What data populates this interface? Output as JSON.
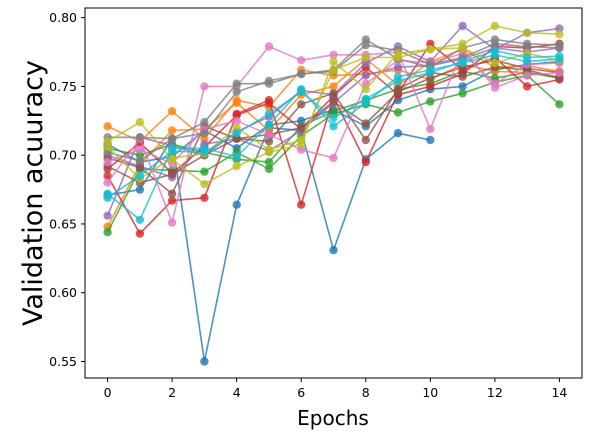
{
  "chart_data": {
    "type": "line",
    "xlabel": "Epochs",
    "ylabel": "Validation acuuracy",
    "xlim": [
      -0.7,
      14.7
    ],
    "ylim": [
      0.538,
      0.807
    ],
    "xticks": [
      0,
      2,
      4,
      6,
      8,
      10,
      12,
      14
    ],
    "yticks": [
      0.55,
      0.6,
      0.65,
      0.7,
      0.75,
      0.8
    ],
    "ytick_labels": [
      "0.55",
      "0.60",
      "0.65",
      "0.70",
      "0.75",
      "0.80"
    ],
    "grid": false,
    "x": [
      0,
      1,
      2,
      3,
      4,
      5,
      6,
      7,
      8,
      9,
      10,
      11,
      12,
      13,
      14
    ],
    "series": [
      {
        "color": "#1f77b4",
        "values": [
          0.671,
          0.675,
          0.712,
          0.55,
          0.664,
          0.72,
          0.718,
          0.631,
          0.697,
          0.716,
          0.711,
          null,
          null,
          null,
          null
        ]
      },
      {
        "color": "#1f77b4",
        "values": [
          0.708,
          0.695,
          0.699,
          0.718,
          0.705,
          0.722,
          0.725,
          0.733,
          0.721,
          0.74,
          0.748,
          0.75,
          0.762,
          0.766,
          0.768
        ]
      },
      {
        "color": "#ff7f0e",
        "values": [
          0.721,
          0.71,
          0.732,
          0.712,
          0.74,
          0.735,
          0.762,
          0.758,
          0.759,
          0.762,
          0.755,
          0.766,
          0.761,
          0.76,
          0.757
        ]
      },
      {
        "color": "#ff7f0e",
        "values": [
          0.648,
          0.693,
          0.718,
          0.719,
          0.738,
          0.718,
          0.744,
          0.75,
          0.77,
          0.751,
          0.768,
          0.777,
          0.764,
          0.765,
          0.761
        ]
      },
      {
        "color": "#2ca02c",
        "values": [
          0.644,
          0.69,
          0.689,
          0.688,
          0.702,
          0.69,
          0.714,
          0.73,
          0.737,
          0.731,
          0.739,
          0.745,
          0.753,
          0.758,
          0.737
        ]
      },
      {
        "color": "#2ca02c",
        "values": [
          0.705,
          0.7,
          0.708,
          0.702,
          0.697,
          0.695,
          0.721,
          0.732,
          0.74,
          0.748,
          0.752,
          0.761,
          0.756,
          0.76,
          0.756
        ]
      },
      {
        "color": "#d62728",
        "values": [
          0.685,
          0.643,
          0.667,
          0.669,
          0.73,
          0.74,
          0.664,
          0.742,
          0.695,
          0.745,
          0.781,
          0.762,
          0.771,
          0.75,
          0.755
        ]
      },
      {
        "color": "#d62728",
        "values": [
          0.69,
          0.709,
          0.687,
          0.706,
          0.729,
          0.738,
          0.719,
          0.743,
          0.764,
          0.744,
          0.75,
          0.759,
          0.779,
          0.778,
          0.781
        ]
      },
      {
        "color": "#9467bd",
        "values": [
          0.656,
          0.713,
          0.707,
          0.7,
          0.717,
          0.728,
          0.747,
          0.744,
          0.767,
          0.779,
          0.768,
          0.794,
          0.777,
          0.789,
          0.792
        ]
      },
      {
        "color": "#9467bd",
        "values": [
          0.7,
          0.692,
          0.684,
          0.708,
          0.712,
          0.703,
          0.718,
          0.738,
          0.758,
          0.764,
          0.765,
          0.77,
          0.778,
          0.775,
          0.778
        ]
      },
      {
        "color": "#8c564b",
        "values": [
          0.692,
          0.68,
          0.686,
          0.7,
          0.712,
          0.71,
          0.737,
          0.745,
          0.711,
          0.748,
          0.76,
          0.757,
          0.764,
          0.762,
          0.756
        ]
      },
      {
        "color": "#8c564b",
        "values": [
          0.698,
          0.691,
          0.672,
          0.721,
          0.712,
          0.715,
          0.72,
          0.739,
          0.723,
          0.746,
          0.756,
          0.764,
          0.769,
          0.763,
          0.76
        ]
      },
      {
        "color": "#e377c2",
        "values": [
          0.68,
          0.712,
          0.651,
          0.75,
          0.75,
          0.779,
          0.769,
          0.773,
          0.773,
          0.775,
          0.719,
          0.777,
          0.749,
          0.758,
          0.76
        ]
      },
      {
        "color": "#e377c2",
        "values": [
          0.695,
          0.704,
          0.694,
          0.719,
          0.725,
          0.715,
          0.704,
          0.698,
          0.752,
          0.769,
          0.767,
          0.774,
          0.752,
          0.766,
          0.767
        ]
      },
      {
        "color": "#7f7f7f",
        "values": [
          0.713,
          0.713,
          0.712,
          0.724,
          0.752,
          0.752,
          0.759,
          0.762,
          0.784,
          0.77,
          0.764,
          0.778,
          0.784,
          0.781,
          0.78
        ]
      },
      {
        "color": "#7f7f7f",
        "values": [
          0.702,
          0.696,
          0.712,
          0.716,
          0.746,
          0.754,
          0.759,
          0.761,
          0.78,
          0.776,
          0.766,
          0.771,
          0.781,
          0.779,
          0.778
        ]
      },
      {
        "color": "#bcbd22",
        "values": [
          0.71,
          0.724,
          0.697,
          0.679,
          0.692,
          0.702,
          0.708,
          0.768,
          0.748,
          0.774,
          0.777,
          0.781,
          0.794,
          0.789,
          0.788
        ]
      },
      {
        "color": "#bcbd22",
        "values": [
          0.706,
          0.683,
          0.698,
          0.701,
          0.72,
          0.704,
          0.711,
          0.762,
          0.771,
          0.771,
          0.777,
          0.778,
          0.767,
          0.774,
          0.769
        ]
      },
      {
        "color": "#17becf",
        "values": [
          0.672,
          0.653,
          0.705,
          0.705,
          0.699,
          0.722,
          0.748,
          0.721,
          0.738,
          0.757,
          0.762,
          0.767,
          0.773,
          0.768,
          0.77
        ]
      },
      {
        "color": "#17becf",
        "values": [
          0.669,
          0.685,
          0.703,
          0.702,
          0.716,
          0.73,
          0.746,
          0.727,
          0.741,
          0.754,
          0.76,
          0.768,
          0.776,
          0.771,
          0.772
        ]
      }
    ]
  }
}
